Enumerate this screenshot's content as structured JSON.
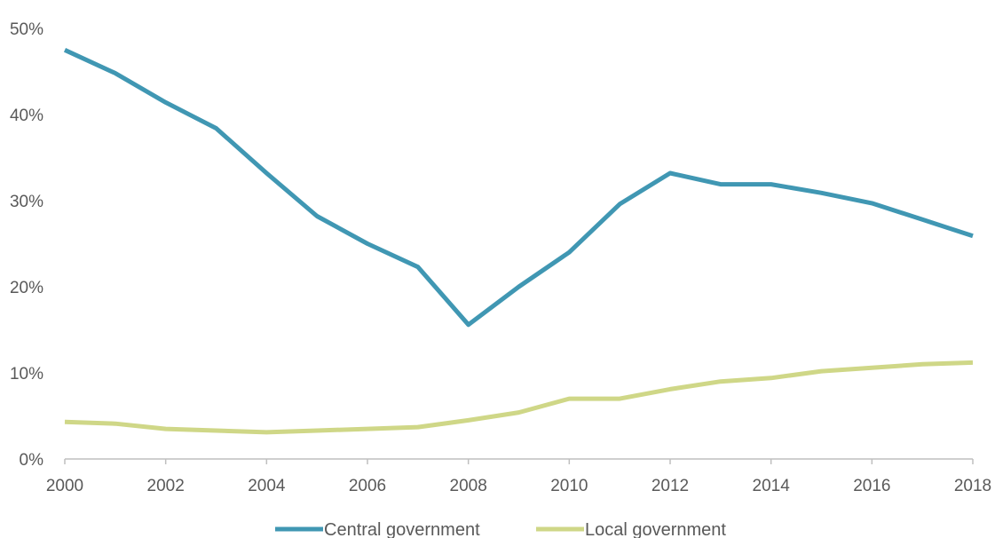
{
  "chart_data": {
    "type": "line",
    "title": "",
    "xlabel": "",
    "ylabel": "",
    "x": [
      2000,
      2001,
      2002,
      2003,
      2004,
      2005,
      2006,
      2007,
      2008,
      2009,
      2010,
      2011,
      2012,
      2013,
      2014,
      2015,
      2016,
      2017,
      2018
    ],
    "x_tick_labels": [
      "2000",
      "2002",
      "2004",
      "2006",
      "2008",
      "2010",
      "2012",
      "2014",
      "2016",
      "2018"
    ],
    "y_tick_labels": [
      "0%",
      "10%",
      "20%",
      "30%",
      "40%",
      "50%"
    ],
    "ylim": [
      0,
      50
    ],
    "grid": false,
    "legend_position": "bottom",
    "series": [
      {
        "name": "Central government",
        "color": "#4097b3",
        "values": [
          47.5,
          44.8,
          41.4,
          38.4,
          33.2,
          28.2,
          25.0,
          22.3,
          15.6,
          20.0,
          24.0,
          29.6,
          33.2,
          31.9,
          31.9,
          30.9,
          29.7,
          27.8,
          25.9
        ]
      },
      {
        "name": "Local government",
        "color": "#cfd787",
        "values": [
          4.3,
          4.1,
          3.5,
          3.3,
          3.1,
          3.3,
          3.5,
          3.7,
          4.5,
          5.4,
          7.0,
          7.0,
          8.1,
          9.0,
          9.4,
          10.2,
          10.6,
          11.0,
          11.2
        ]
      }
    ]
  }
}
